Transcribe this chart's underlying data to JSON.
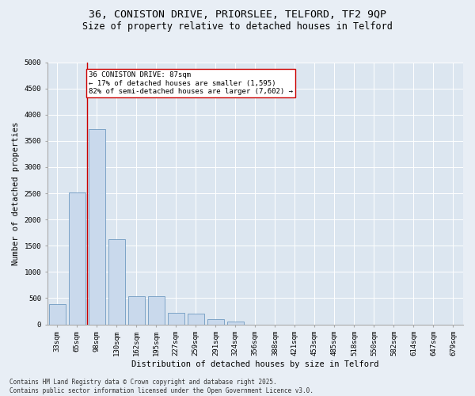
{
  "title_line1": "36, CONISTON DRIVE, PRIORSLEE, TELFORD, TF2 9QP",
  "title_line2": "Size of property relative to detached houses in Telford",
  "xlabel": "Distribution of detached houses by size in Telford",
  "ylabel": "Number of detached properties",
  "categories": [
    "33sqm",
    "65sqm",
    "98sqm",
    "130sqm",
    "162sqm",
    "195sqm",
    "227sqm",
    "259sqm",
    "291sqm",
    "324sqm",
    "356sqm",
    "388sqm",
    "421sqm",
    "453sqm",
    "485sqm",
    "518sqm",
    "550sqm",
    "582sqm",
    "614sqm",
    "647sqm",
    "679sqm"
  ],
  "values": [
    380,
    2520,
    3730,
    1630,
    530,
    530,
    220,
    200,
    100,
    60,
    0,
    0,
    0,
    0,
    0,
    0,
    0,
    0,
    0,
    0,
    0
  ],
  "bar_color": "#c9d9ec",
  "bar_edge_color": "#5b8db8",
  "vline_x_index": 1.5,
  "vline_color": "#cc0000",
  "annotation_text": "36 CONISTON DRIVE: 87sqm\n← 17% of detached houses are smaller (1,595)\n82% of semi-detached houses are larger (7,602) →",
  "annotation_box_color": "#ffffff",
  "annotation_box_edge_color": "#cc0000",
  "ylim": [
    0,
    5000
  ],
  "yticks": [
    0,
    500,
    1000,
    1500,
    2000,
    2500,
    3000,
    3500,
    4000,
    4500,
    5000
  ],
  "background_color": "#e8eef5",
  "plot_background_color": "#dce6f0",
  "footer_line1": "Contains HM Land Registry data © Crown copyright and database right 2025.",
  "footer_line2": "Contains public sector information licensed under the Open Government Licence v3.0.",
  "title_fontsize": 9.5,
  "subtitle_fontsize": 8.5,
  "axis_label_fontsize": 7.5,
  "tick_fontsize": 6.5,
  "annotation_fontsize": 6.5,
  "footer_fontsize": 5.5
}
